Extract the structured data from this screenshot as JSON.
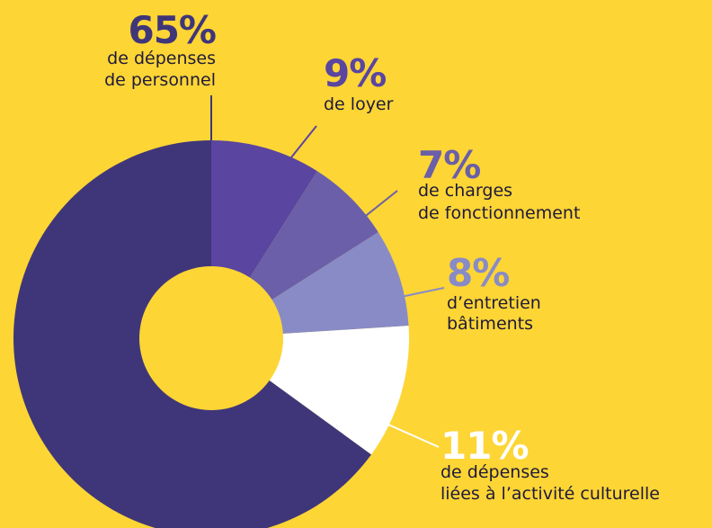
{
  "chart_data": {
    "type": "donut",
    "values": [
      9,
      7,
      8,
      11,
      65
    ],
    "value_labels": [
      "9%",
      "7%",
      "8%",
      "11%",
      "65%"
    ],
    "labels": [
      [
        "de loyer"
      ],
      [
        "de charges",
        "de fonctionnement"
      ],
      [
        "d’entretien",
        "bâtiments"
      ],
      [
        "de dépenses",
        "liées à l’activité culturelle"
      ],
      [
        "de dépenses",
        "de personnel"
      ]
    ],
    "colors": [
      "#5a45a0",
      "#6a5fa8",
      "#888bc6",
      "#ffffff",
      "#3f3679"
    ]
  }
}
